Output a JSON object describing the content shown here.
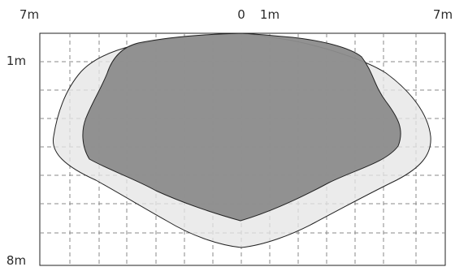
{
  "labels": {
    "top_left": "7m",
    "top_zero": "0",
    "top_one": "1m",
    "top_right": "7m",
    "left_one": "1m",
    "left_bottom": "8m"
  },
  "colors": {
    "outer_zone_fill": "#e6e6e6",
    "inner_zone_fill": "#8c8c8c",
    "grid_line": "#8a8a8a",
    "outline": "#222222",
    "text": "#2b2b2b"
  }
}
